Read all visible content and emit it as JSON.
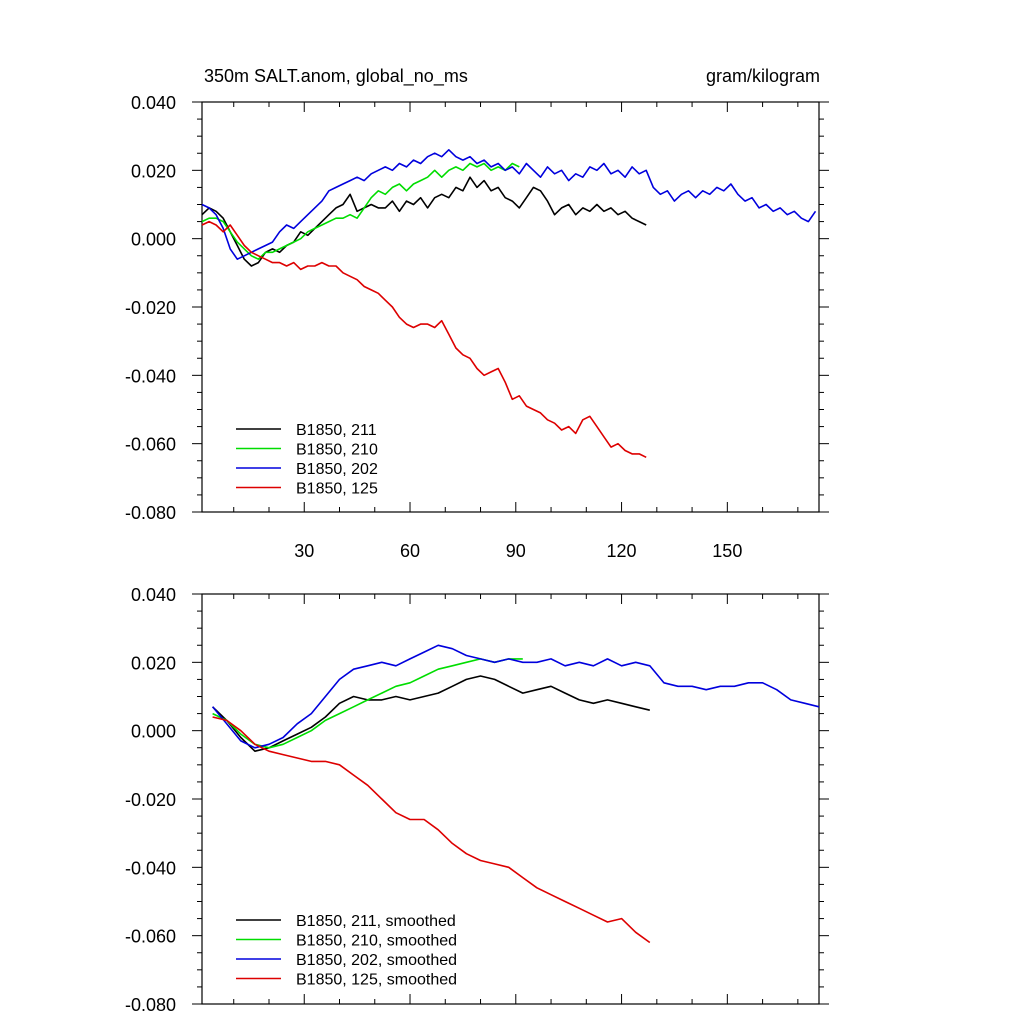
{
  "colors": {
    "B1850_211": "#000000",
    "B1850_210": "#00dd00",
    "B1850_202": "#0000dd",
    "B1850_125": "#dd0000",
    "axis": "#000000",
    "background": "#ffffff"
  },
  "chart_data": [
    {
      "type": "line",
      "title_left": "350m SALT.anom, global_no_ms",
      "title_right": "gram/kilogram",
      "xlim": [
        1,
        176
      ],
      "ylim": [
        -0.08,
        0.04
      ],
      "x_ticks": [
        30,
        60,
        90,
        120,
        150
      ],
      "x_tick_labels": [
        "30",
        "60",
        "90",
        "120",
        "150"
      ],
      "y_ticks": [
        0.04,
        0.02,
        0.0,
        -0.02,
        -0.04,
        -0.06,
        -0.08
      ],
      "y_tick_labels": [
        "0.040",
        "0.020",
        "0.000",
        "-0.020",
        "-0.040",
        "-0.060",
        "-0.080"
      ],
      "grid": false,
      "legend_position": "bottom-left",
      "series": [
        {
          "name": "B1850, 211",
          "color_key": "B1850_211",
          "x": [
            1,
            3,
            5,
            7,
            9,
            11,
            13,
            15,
            17,
            19,
            21,
            23,
            25,
            27,
            29,
            31,
            33,
            35,
            37,
            39,
            41,
            43,
            45,
            47,
            49,
            51,
            53,
            55,
            57,
            59,
            61,
            63,
            65,
            67,
            69,
            71,
            73,
            75,
            77,
            79,
            81,
            83,
            85,
            87,
            89,
            91,
            93,
            95,
            97,
            99,
            101,
            103,
            105,
            107,
            109,
            111,
            113,
            115,
            117,
            119,
            121,
            123,
            125,
            127
          ],
          "y": [
            0.007,
            0.009,
            0.008,
            0.006,
            0.002,
            -0.002,
            -0.006,
            -0.008,
            -0.007,
            -0.004,
            -0.003,
            -0.004,
            -0.002,
            -0.001,
            0.002,
            0.001,
            0.003,
            0.005,
            0.007,
            0.009,
            0.01,
            0.013,
            0.008,
            0.009,
            0.01,
            0.009,
            0.009,
            0.011,
            0.008,
            0.011,
            0.01,
            0.012,
            0.009,
            0.012,
            0.013,
            0.012,
            0.015,
            0.014,
            0.018,
            0.015,
            0.017,
            0.014,
            0.015,
            0.012,
            0.011,
            0.009,
            0.012,
            0.015,
            0.014,
            0.011,
            0.007,
            0.009,
            0.01,
            0.007,
            0.009,
            0.008,
            0.01,
            0.008,
            0.009,
            0.007,
            0.008,
            0.006,
            0.005,
            0.004
          ]
        },
        {
          "name": "B1850, 210",
          "color_key": "B1850_210",
          "x": [
            1,
            3,
            5,
            7,
            9,
            11,
            13,
            15,
            17,
            19,
            21,
            23,
            25,
            27,
            29,
            31,
            33,
            35,
            37,
            39,
            41,
            43,
            45,
            47,
            49,
            51,
            53,
            55,
            57,
            59,
            61,
            63,
            65,
            67,
            69,
            71,
            73,
            75,
            77,
            79,
            81,
            83,
            85,
            87,
            89,
            91
          ],
          "y": [
            0.005,
            0.006,
            0.006,
            0.005,
            0.002,
            -0.001,
            -0.003,
            -0.005,
            -0.006,
            -0.004,
            -0.004,
            -0.003,
            -0.002,
            -0.001,
            0.0,
            0.002,
            0.003,
            0.004,
            0.005,
            0.006,
            0.006,
            0.007,
            0.006,
            0.009,
            0.012,
            0.014,
            0.013,
            0.015,
            0.016,
            0.014,
            0.016,
            0.017,
            0.018,
            0.02,
            0.018,
            0.02,
            0.021,
            0.02,
            0.022,
            0.021,
            0.022,
            0.02,
            0.021,
            0.02,
            0.022,
            0.021
          ]
        },
        {
          "name": "B1850, 202",
          "color_key": "B1850_202",
          "x": [
            1,
            3,
            5,
            7,
            9,
            11,
            13,
            15,
            17,
            19,
            21,
            23,
            25,
            27,
            29,
            31,
            33,
            35,
            37,
            39,
            41,
            43,
            45,
            47,
            49,
            51,
            53,
            55,
            57,
            59,
            61,
            63,
            65,
            67,
            69,
            71,
            73,
            75,
            77,
            79,
            81,
            83,
            85,
            87,
            89,
            91,
            93,
            95,
            97,
            99,
            101,
            103,
            105,
            107,
            109,
            111,
            113,
            115,
            117,
            119,
            121,
            123,
            125,
            127,
            129,
            131,
            133,
            135,
            137,
            139,
            141,
            143,
            145,
            147,
            149,
            151,
            153,
            155,
            157,
            159,
            161,
            163,
            165,
            167,
            169,
            171,
            173,
            175
          ],
          "y": [
            0.01,
            0.009,
            0.007,
            0.003,
            -0.003,
            -0.006,
            -0.005,
            -0.004,
            -0.003,
            -0.002,
            -0.001,
            0.002,
            0.004,
            0.003,
            0.005,
            0.007,
            0.009,
            0.011,
            0.014,
            0.015,
            0.016,
            0.017,
            0.018,
            0.017,
            0.019,
            0.02,
            0.021,
            0.02,
            0.022,
            0.021,
            0.023,
            0.022,
            0.024,
            0.025,
            0.024,
            0.026,
            0.024,
            0.023,
            0.024,
            0.022,
            0.023,
            0.021,
            0.022,
            0.02,
            0.021,
            0.019,
            0.022,
            0.02,
            0.018,
            0.021,
            0.019,
            0.02,
            0.017,
            0.019,
            0.018,
            0.021,
            0.02,
            0.022,
            0.019,
            0.02,
            0.018,
            0.021,
            0.019,
            0.02,
            0.015,
            0.013,
            0.014,
            0.011,
            0.013,
            0.014,
            0.012,
            0.014,
            0.013,
            0.015,
            0.014,
            0.016,
            0.013,
            0.011,
            0.012,
            0.009,
            0.01,
            0.008,
            0.009,
            0.007,
            0.008,
            0.006,
            0.005,
            0.008
          ]
        },
        {
          "name": "B1850, 125",
          "color_key": "B1850_125",
          "x": [
            1,
            3,
            5,
            7,
            9,
            11,
            13,
            15,
            17,
            19,
            21,
            23,
            25,
            27,
            29,
            31,
            33,
            35,
            37,
            39,
            41,
            43,
            45,
            47,
            49,
            51,
            53,
            55,
            57,
            59,
            61,
            63,
            65,
            67,
            69,
            71,
            73,
            75,
            77,
            79,
            81,
            83,
            85,
            87,
            89,
            91,
            93,
            95,
            97,
            99,
            101,
            103,
            105,
            107,
            109,
            111,
            113,
            115,
            117,
            119,
            121,
            123,
            125,
            127
          ],
          "y": [
            0.004,
            0.005,
            0.004,
            0.002,
            0.004,
            0.001,
            -0.002,
            -0.004,
            -0.005,
            -0.006,
            -0.007,
            -0.007,
            -0.008,
            -0.007,
            -0.009,
            -0.008,
            -0.008,
            -0.007,
            -0.008,
            -0.008,
            -0.01,
            -0.011,
            -0.012,
            -0.014,
            -0.015,
            -0.016,
            -0.018,
            -0.02,
            -0.023,
            -0.025,
            -0.026,
            -0.025,
            -0.025,
            -0.026,
            -0.024,
            -0.028,
            -0.032,
            -0.034,
            -0.035,
            -0.038,
            -0.04,
            -0.039,
            -0.038,
            -0.042,
            -0.047,
            -0.046,
            -0.049,
            -0.05,
            -0.051,
            -0.053,
            -0.054,
            -0.056,
            -0.055,
            -0.057,
            -0.053,
            -0.052,
            -0.055,
            -0.058,
            -0.061,
            -0.06,
            -0.062,
            -0.063,
            -0.063,
            -0.064
          ]
        }
      ]
    },
    {
      "type": "line",
      "xlim": [
        1,
        176
      ],
      "ylim": [
        -0.08,
        0.04
      ],
      "x_ticks": [
        30,
        60,
        90,
        120,
        150
      ],
      "y_ticks": [
        0.04,
        0.02,
        0.0,
        -0.02,
        -0.04,
        -0.06,
        -0.08
      ],
      "y_tick_labels": [
        "0.040",
        "0.020",
        "0.000",
        "-0.020",
        "-0.040",
        "-0.060",
        "-0.080"
      ],
      "grid": false,
      "legend_position": "bottom-left",
      "series": [
        {
          "name": "B1850, 211, smoothed",
          "color_key": "B1850_211",
          "x": [
            4,
            8,
            12,
            16,
            20,
            24,
            28,
            32,
            36,
            40,
            44,
            48,
            52,
            56,
            60,
            64,
            68,
            72,
            76,
            80,
            84,
            88,
            92,
            96,
            100,
            104,
            108,
            112,
            116,
            120,
            124,
            128
          ],
          "y": [
            0.007,
            0.003,
            -0.002,
            -0.006,
            -0.005,
            -0.003,
            -0.001,
            0.001,
            0.004,
            0.008,
            0.01,
            0.009,
            0.009,
            0.01,
            0.009,
            0.01,
            0.011,
            0.013,
            0.015,
            0.016,
            0.015,
            0.013,
            0.011,
            0.012,
            0.013,
            0.011,
            0.009,
            0.008,
            0.009,
            0.008,
            0.007,
            0.006
          ]
        },
        {
          "name": "B1850, 210, smoothed",
          "color_key": "B1850_210",
          "x": [
            4,
            8,
            12,
            16,
            20,
            24,
            28,
            32,
            36,
            40,
            44,
            48,
            52,
            56,
            60,
            64,
            68,
            72,
            76,
            80,
            84,
            88,
            92
          ],
          "y": [
            0.005,
            0.003,
            -0.001,
            -0.004,
            -0.005,
            -0.004,
            -0.002,
            0.0,
            0.003,
            0.005,
            0.007,
            0.009,
            0.011,
            0.013,
            0.014,
            0.016,
            0.018,
            0.019,
            0.02,
            0.021,
            0.02,
            0.021,
            0.021
          ]
        },
        {
          "name": "B1850, 202, smoothed",
          "color_key": "B1850_202",
          "x": [
            4,
            8,
            12,
            16,
            20,
            24,
            28,
            32,
            36,
            40,
            44,
            48,
            52,
            56,
            60,
            64,
            68,
            72,
            76,
            80,
            84,
            88,
            92,
            96,
            100,
            104,
            108,
            112,
            116,
            120,
            124,
            128,
            132,
            136,
            140,
            144,
            148,
            152,
            156,
            160,
            164,
            168,
            172,
            176
          ],
          "y": [
            0.007,
            0.002,
            -0.003,
            -0.005,
            -0.004,
            -0.002,
            0.002,
            0.005,
            0.01,
            0.015,
            0.018,
            0.019,
            0.02,
            0.019,
            0.021,
            0.023,
            0.025,
            0.024,
            0.022,
            0.021,
            0.02,
            0.021,
            0.02,
            0.02,
            0.021,
            0.019,
            0.02,
            0.019,
            0.021,
            0.019,
            0.02,
            0.019,
            0.014,
            0.013,
            0.013,
            0.012,
            0.013,
            0.013,
            0.014,
            0.014,
            0.012,
            0.009,
            0.008,
            0.007
          ]
        },
        {
          "name": "B1850, 125, smoothed",
          "color_key": "B1850_125",
          "x": [
            4,
            8,
            12,
            16,
            20,
            24,
            28,
            32,
            36,
            40,
            44,
            48,
            52,
            56,
            60,
            64,
            68,
            72,
            76,
            80,
            84,
            88,
            92,
            96,
            100,
            104,
            108,
            112,
            116,
            120,
            124,
            128
          ],
          "y": [
            0.004,
            0.003,
            0.0,
            -0.004,
            -0.006,
            -0.007,
            -0.008,
            -0.009,
            -0.009,
            -0.01,
            -0.013,
            -0.016,
            -0.02,
            -0.024,
            -0.026,
            -0.026,
            -0.029,
            -0.033,
            -0.036,
            -0.038,
            -0.039,
            -0.04,
            -0.043,
            -0.046,
            -0.048,
            -0.05,
            -0.052,
            -0.054,
            -0.056,
            -0.055,
            -0.059,
            -0.062
          ]
        }
      ]
    }
  ]
}
